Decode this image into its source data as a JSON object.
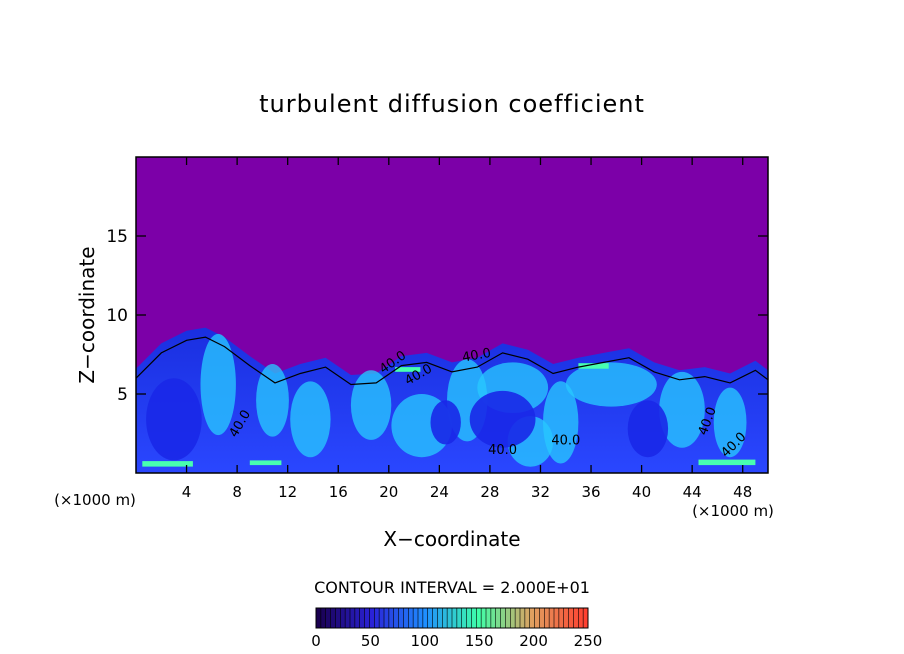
{
  "chart_data": {
    "type": "heatmap",
    "title": "turbulent diffusion coefficient",
    "xlabel": "X−coordinate",
    "ylabel": "Z−coordinate",
    "x_unit_label": "(×1000 m)",
    "y_unit_label": "(×1000 m)",
    "xlim": [
      0,
      50
    ],
    "ylim": [
      0,
      20
    ],
    "x_ticks": [
      4,
      8,
      12,
      16,
      20,
      24,
      28,
      32,
      36,
      40,
      44,
      48
    ],
    "y_ticks": [
      5,
      10,
      15
    ],
    "contour_interval_text": "CONTOUR INTERVAL = 2.000E+01",
    "contour_labels": [
      "40.0",
      "40.0",
      "40.0",
      "40.0",
      "40.0",
      "40.0",
      "40.0",
      "40.0"
    ],
    "contour_levels": [
      20,
      40,
      60,
      80,
      100,
      120,
      140,
      160,
      180,
      200,
      220,
      240
    ],
    "boundary_layer_top_km": [
      [
        0,
        6.6
      ],
      [
        2,
        8.2
      ],
      [
        4,
        9.0
      ],
      [
        5.5,
        9.2
      ],
      [
        7,
        8.6
      ],
      [
        9,
        7.4
      ],
      [
        11,
        6.3
      ],
      [
        13,
        6.9
      ],
      [
        15,
        7.3
      ],
      [
        17,
        6.2
      ],
      [
        19,
        6.3
      ],
      [
        21,
        7.4
      ],
      [
        23,
        7.6
      ],
      [
        25,
        7.0
      ],
      [
        27,
        7.3
      ],
      [
        29,
        8.2
      ],
      [
        31,
        7.8
      ],
      [
        33,
        6.9
      ],
      [
        35,
        7.3
      ],
      [
        37,
        7.6
      ],
      [
        39,
        7.9
      ],
      [
        41,
        7.0
      ],
      [
        43,
        6.5
      ],
      [
        45,
        6.7
      ],
      [
        47,
        6.3
      ],
      [
        49,
        7.1
      ],
      [
        50,
        6.5
      ]
    ],
    "colorbar": {
      "ticks": [
        0,
        50,
        100,
        150,
        200,
        250
      ],
      "range": [
        0,
        250
      ],
      "colors": [
        "#1a0050",
        "#2a22d8",
        "#1f8fff",
        "#3fffa8",
        "#e0a060",
        "#ff4030"
      ]
    },
    "colors": {
      "background_field": "#7c00a8",
      "low_value": "#1a28e8",
      "mid_value": "#28c8ff",
      "high_value": "#48ffb0"
    }
  }
}
